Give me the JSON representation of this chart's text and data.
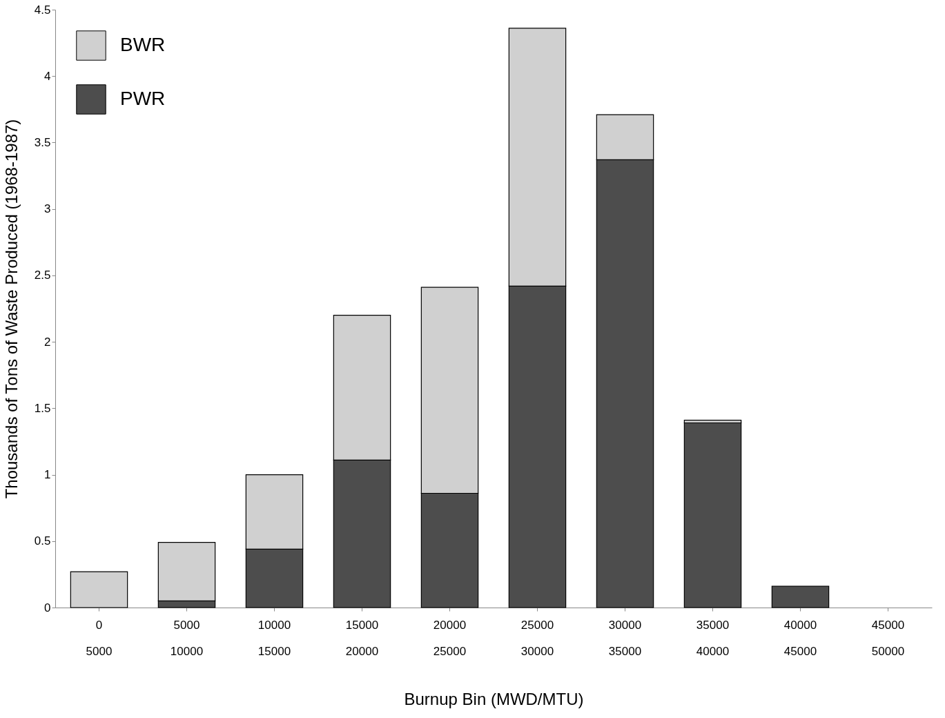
{
  "chart_data": {
    "type": "bar",
    "stacked": true,
    "xlabel": "Burnup Bin (MWD/MTU)",
    "ylabel": "Thousands of Tons of Waste Produced (1968-1987)",
    "categories": [
      "0\n5000",
      "5000\n10000",
      "10000\n15000",
      "15000\n20000",
      "20000\n25000",
      "25000\n30000",
      "30000\n35000",
      "35000\n40000",
      "40000\n45000",
      "45000\n50000"
    ],
    "series": [
      {
        "name": "PWR",
        "color": "#4d4d4d",
        "values": [
          null,
          0.05,
          0.44,
          1.11,
          0.86,
          2.42,
          3.37,
          1.39,
          0.16,
          null
        ]
      },
      {
        "name": "BWR",
        "color": "#d0d0d0",
        "values": [
          0.27,
          0.44,
          0.56,
          1.09,
          1.55,
          1.94,
          0.34,
          0.02,
          null,
          null
        ]
      }
    ],
    "ylim": [
      0,
      4.5
    ],
    "yticks": [
      0,
      0.5,
      1,
      1.5,
      2,
      2.5,
      3,
      3.5,
      4,
      4.5
    ],
    "grid": false,
    "legend": "top left"
  }
}
